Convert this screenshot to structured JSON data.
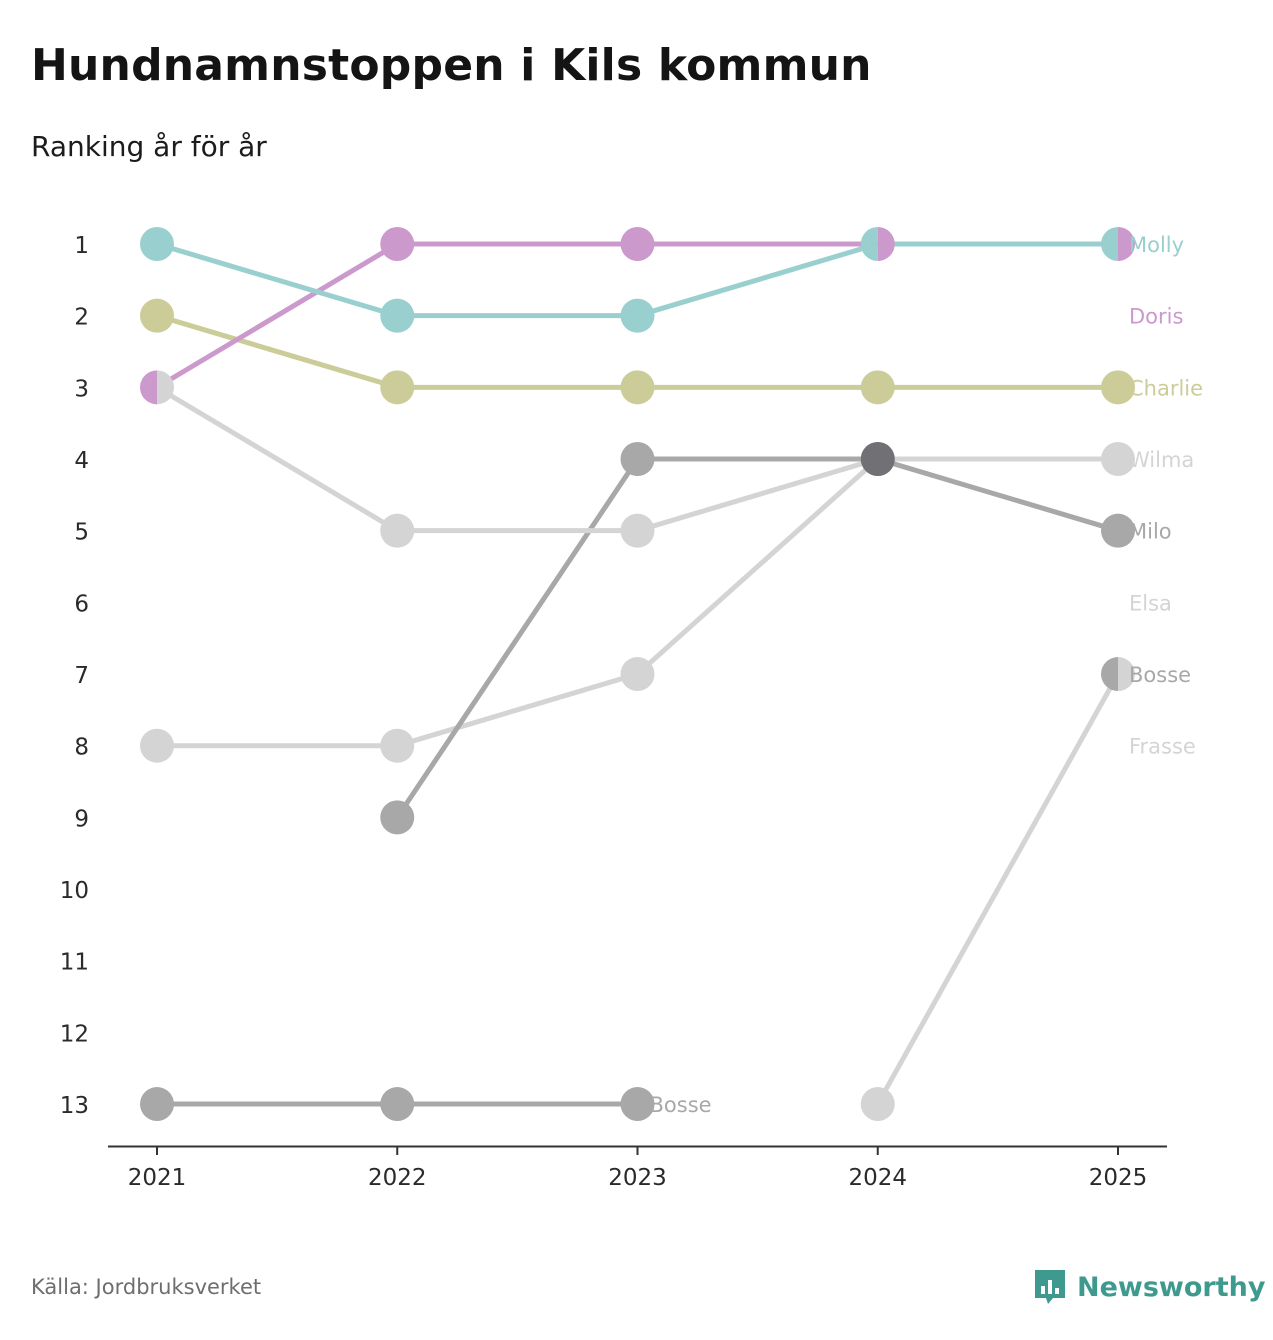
{
  "title": "Hundnamnstoppen i Kils kommun",
  "subtitle": "Ranking år för år",
  "source": "Källa: Jordbruksverket",
  "brand": "Newsworthy",
  "brand_icon": "bar-chart-speech-bubble-icon",
  "chart_data": {
    "type": "line",
    "x": [
      2021,
      2022,
      2023,
      2024,
      2025
    ],
    "x_ticks": [
      "2021",
      "2022",
      "2023",
      "2024",
      "2025"
    ],
    "y_ticks": [
      "1",
      "2",
      "3",
      "4",
      "5",
      "6",
      "7",
      "8",
      "9",
      "10",
      "11",
      "12",
      "13"
    ],
    "ylim": [
      1,
      13
    ],
    "y_inverted": true,
    "grid": false,
    "series": [
      {
        "name": "Molly",
        "color": "#99cfcf",
        "label": "Molly",
        "label_rank": 1,
        "segments": [
          {
            "x": [
              2021,
              2022,
              2023,
              2024,
              2025
            ],
            "y": [
              1,
              2,
              2,
              1,
              1
            ]
          }
        ]
      },
      {
        "name": "Doris",
        "color": "#cc99cc",
        "label": "Doris",
        "label_rank": 2,
        "segments": [
          {
            "x": [
              2021,
              2022,
              2023,
              2024,
              2025
            ],
            "y": [
              3,
              1,
              1,
              1,
              1
            ]
          }
        ]
      },
      {
        "name": "Charlie",
        "color": "#cccc99",
        "label": "Charlie",
        "label_rank": 3,
        "segments": [
          {
            "x": [
              2021,
              2022,
              2023,
              2024,
              2025
            ],
            "y": [
              2,
              3,
              3,
              3,
              3
            ]
          }
        ]
      },
      {
        "name": "Wilma",
        "color": "#d4d4d4",
        "label": "Wilma",
        "label_rank": 4,
        "segments": [
          {
            "x": [
              2021,
              2022,
              2023,
              2024,
              2025
            ],
            "y": [
              3,
              5,
              5,
              4,
              4
            ]
          }
        ]
      },
      {
        "name": "Milo",
        "color": "#a8a8a8",
        "label": "Milo",
        "label_rank": 5,
        "segments": [
          {
            "x": [
              2022,
              2023,
              2024,
              2025
            ],
            "y": [
              9,
              4,
              4,
              5
            ]
          }
        ]
      },
      {
        "name": "Elsa",
        "color": "#d4d4d4",
        "label": "Elsa",
        "label_rank": 6,
        "segments": [
          {
            "x": [
              2021,
              2022,
              2023,
              2024
            ],
            "y": [
              8,
              8,
              7,
              4
            ]
          }
        ]
      },
      {
        "name": "Bosse",
        "color": "#a8a8a8",
        "label": "Bosse",
        "label_rank": 7,
        "segments": [
          {
            "x": [
              2021,
              2022,
              2023
            ],
            "y": [
              13,
              13,
              13
            ]
          },
          {
            "x": [
              2025
            ],
            "y": [
              7
            ]
          }
        ]
      },
      {
        "name": "Frasse",
        "color": "#d4d4d4",
        "label": "Frasse",
        "label_rank": 8,
        "segments": [
          {
            "x": [
              2024,
              2025
            ],
            "y": [
              13,
              7
            ]
          }
        ]
      }
    ],
    "highlight_points": [
      {
        "x": 2024,
        "y": 4,
        "color": "#707075"
      }
    ],
    "annotations": [
      {
        "text": "Bosse",
        "x": 2023,
        "y": 13,
        "color": "#a8a8a8"
      }
    ]
  }
}
